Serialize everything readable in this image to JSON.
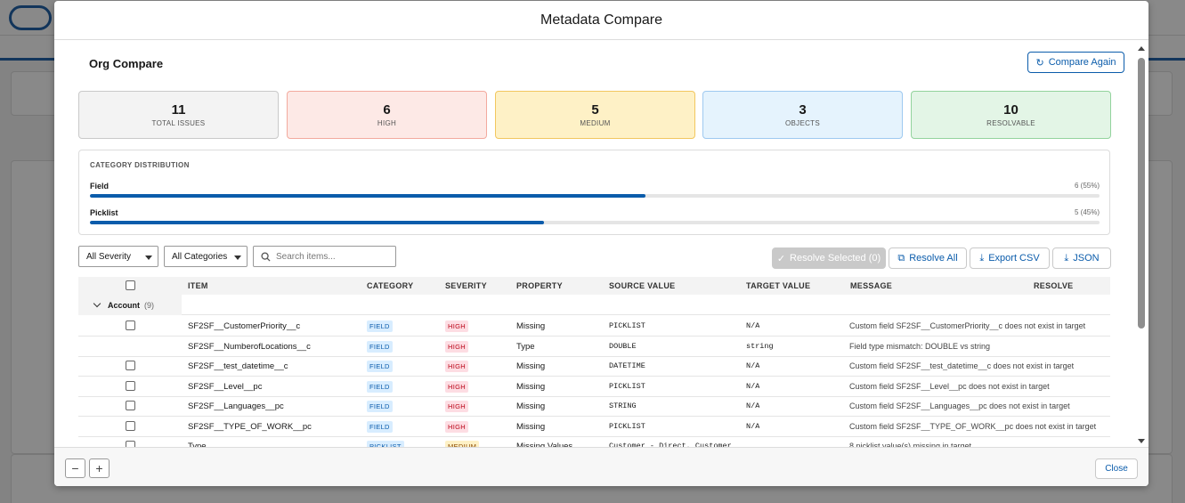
{
  "modal": {
    "title": "Metadata Compare"
  },
  "section": {
    "title": "Org Compare",
    "compare_again": "Compare Again"
  },
  "stats": [
    {
      "value": "11",
      "label": "TOTAL ISSUES",
      "bg": "#f3f3f3",
      "border": "#c9c9c9"
    },
    {
      "value": "6",
      "label": "HIGH",
      "bg": "#fde9e6",
      "border": "#f3aa9e"
    },
    {
      "value": "5",
      "label": "MEDIUM",
      "bg": "#fef1c6",
      "border": "#f2c75f"
    },
    {
      "value": "3",
      "label": "OBJECTS",
      "bg": "#e5f3fd",
      "border": "#9ec9f0"
    },
    {
      "value": "10",
      "label": "RESOLVABLE",
      "bg": "#e3f5e6",
      "border": "#93d39d"
    }
  ],
  "distribution": {
    "title": "CATEGORY DISTRIBUTION",
    "items": [
      {
        "name": "Field",
        "value": "6 (55%)",
        "fraction": 0.55
      },
      {
        "name": "Picklist",
        "value": "5 (45%)",
        "fraction": 0.45
      }
    ]
  },
  "filters": {
    "severity": "All Severity",
    "categories": "All Categories",
    "search_placeholder": "Search items..."
  },
  "actions": {
    "resolve_selected": "Resolve Selected (0)",
    "resolve_all": "Resolve All",
    "export_csv": "Export CSV",
    "json": "JSON"
  },
  "table": {
    "headers": [
      "ITEM",
      "CATEGORY",
      "SEVERITY",
      "PROPERTY",
      "SOURCE VALUE",
      "TARGET VALUE",
      "MESSAGE",
      "RESOLVE"
    ],
    "group": {
      "name": "Account",
      "count": "(9)"
    },
    "rows": [
      {
        "item": "SF2SF__CustomerPriority__c",
        "category": "FIELD",
        "severity": "HIGH",
        "property": "Missing",
        "source": "PICKLIST",
        "target": "N/A",
        "message": "Custom field SF2SF__CustomerPriority__c does not exist in target",
        "checkbox": true
      },
      {
        "item": "SF2SF__NumberofLocations__c",
        "category": "FIELD",
        "severity": "HIGH",
        "property": "Type",
        "source": "DOUBLE",
        "target": "string",
        "message": "Field type mismatch: DOUBLE vs string",
        "checkbox": false
      },
      {
        "item": "SF2SF__test_datetime__c",
        "category": "FIELD",
        "severity": "HIGH",
        "property": "Missing",
        "source": "DATETIME",
        "target": "N/A",
        "message": "Custom field SF2SF__test_datetime__c does not exist in target",
        "checkbox": true
      },
      {
        "item": "SF2SF__Level__pc",
        "category": "FIELD",
        "severity": "HIGH",
        "property": "Missing",
        "source": "PICKLIST",
        "target": "N/A",
        "message": "Custom field SF2SF__Level__pc does not exist in target",
        "checkbox": true
      },
      {
        "item": "SF2SF__Languages__pc",
        "category": "FIELD",
        "severity": "HIGH",
        "property": "Missing",
        "source": "STRING",
        "target": "N/A",
        "message": "Custom field SF2SF__Languages__pc does not exist in target",
        "checkbox": true
      },
      {
        "item": "SF2SF__TYPE_OF_WORK__pc",
        "category": "FIELD",
        "severity": "HIGH",
        "property": "Missing",
        "source": "PICKLIST",
        "target": "N/A",
        "message": "Custom field SF2SF__TYPE_OF_WORK__pc does not exist in target",
        "checkbox": true
      },
      {
        "item": "Type",
        "category": "PICKLIST",
        "severity": "MEDIUM",
        "property": "Missing Values",
        "source": "Customer - Direct, Customer…",
        "target": "",
        "message": "8 picklist value(s) missing in target",
        "checkbox": true
      }
    ]
  },
  "footer": {
    "zoom_out": "−",
    "zoom_in": "+",
    "close": "Close"
  },
  "colors": {
    "accent": "#0b5cab",
    "high": "#ba0517",
    "medium": "#8c4b02"
  }
}
